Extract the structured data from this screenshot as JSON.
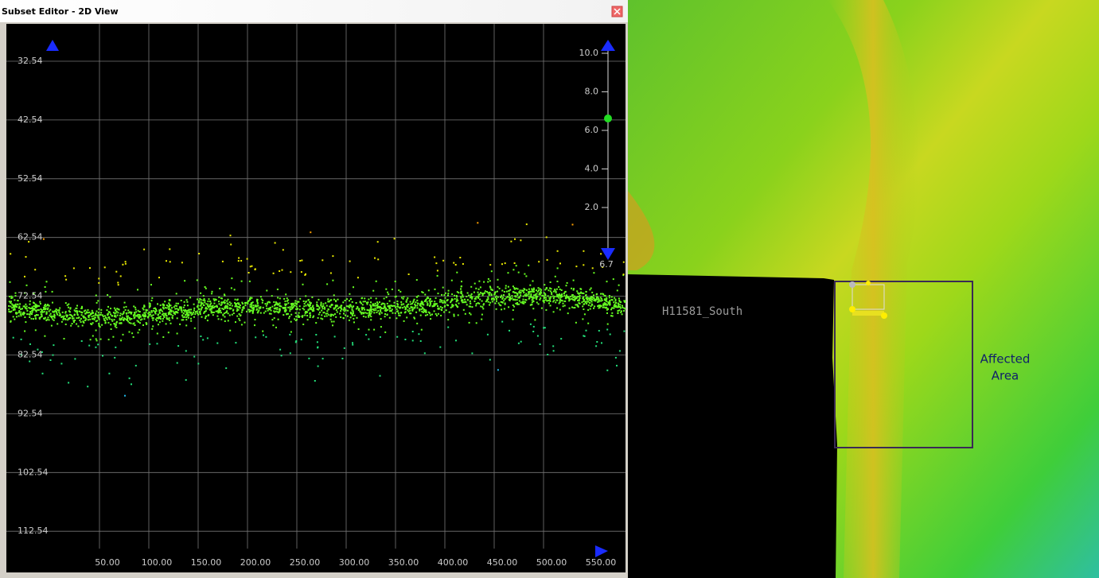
{
  "window": {
    "title": "Subset Editor - 2D View"
  },
  "plot": {
    "y_labels": [
      "32.54",
      "42.54",
      "52.54",
      "62.54",
      "72.54",
      "82.54",
      "92.54",
      "102.54",
      "112.54"
    ],
    "x_labels": [
      "50.00",
      "100.00",
      "150.00",
      "200.00",
      "250.00",
      "300.00",
      "350.00",
      "400.00",
      "450.00",
      "500.00",
      "550.00"
    ],
    "slider_labels": [
      "10.0",
      "8.0",
      "6.0",
      "4.0",
      "2.0"
    ],
    "slider_value": "6.7"
  },
  "map": {
    "survey_label": "H11581_South",
    "annotation": [
      "Affected",
      "Area"
    ]
  }
}
